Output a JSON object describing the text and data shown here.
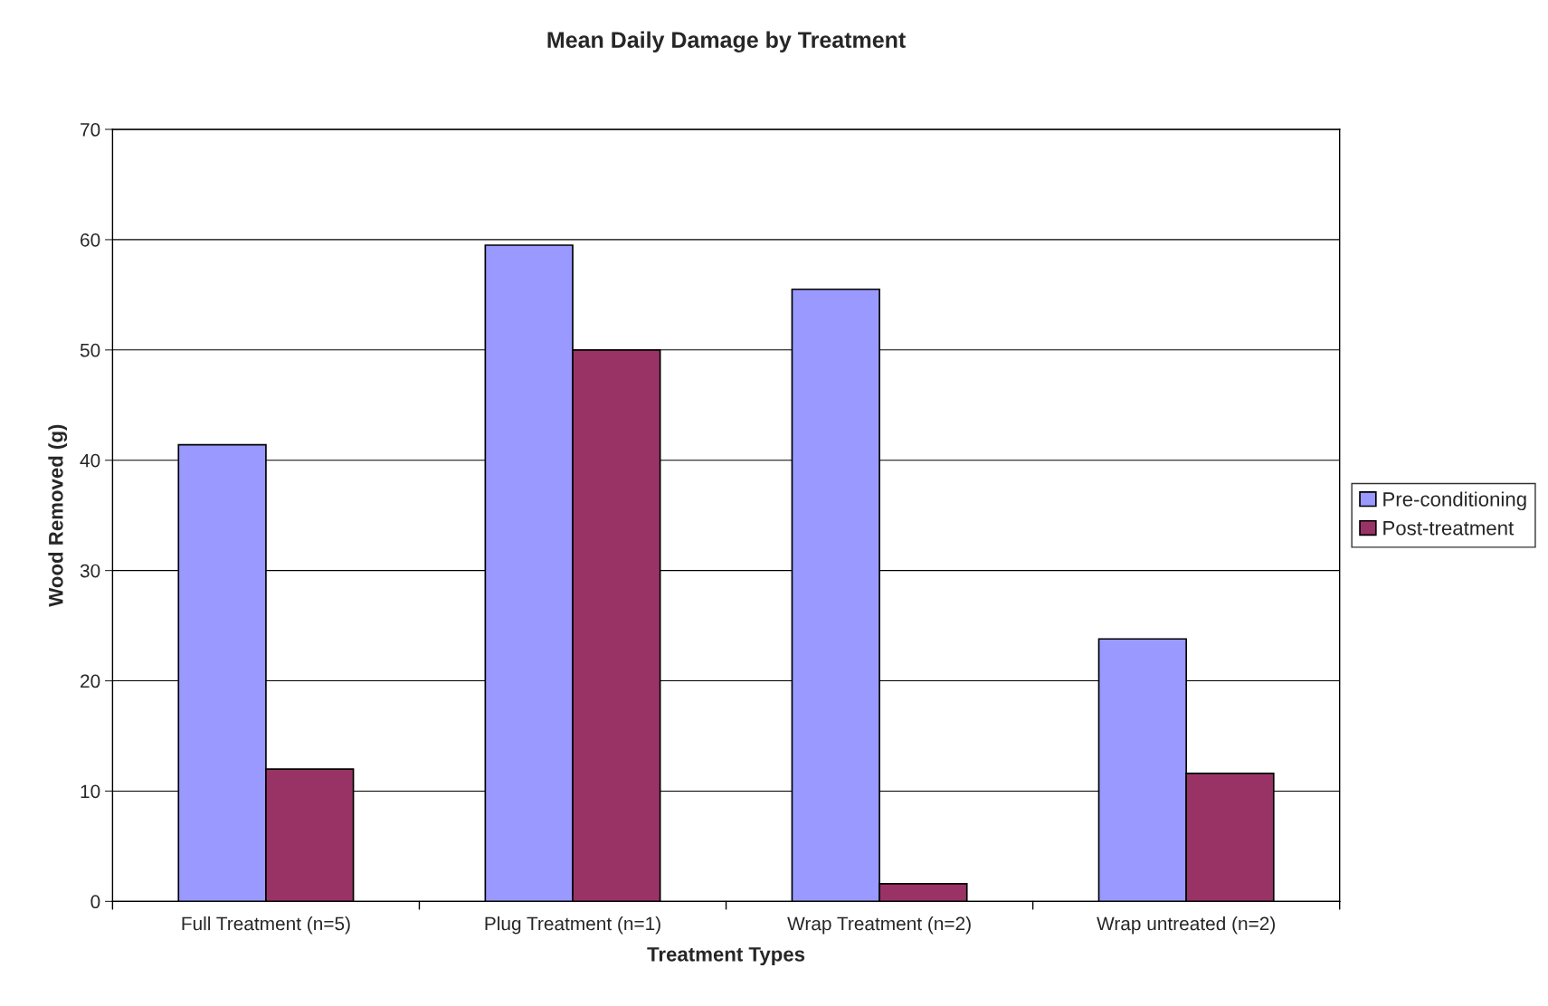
{
  "chart_data": {
    "type": "bar",
    "title": "Mean Daily Damage by Treatment",
    "xlabel": "Treatment Types",
    "ylabel": "Wood Removed (g)",
    "categories": [
      "Full Treatment (n=5)",
      "Plug Treatment (n=1)",
      "Wrap Treatment (n=2)",
      "Wrap untreated (n=2)"
    ],
    "series": [
      {
        "name": "Pre-conditioning",
        "color": "#9999ff",
        "values": [
          41.4,
          59.5,
          55.5,
          23.8
        ]
      },
      {
        "name": "Post-treatment",
        "color": "#993366",
        "values": [
          12.0,
          50.0,
          1.6,
          11.6
        ]
      }
    ],
    "ylim": [
      0,
      70
    ],
    "yticks": [
      0,
      10,
      20,
      30,
      40,
      50,
      60,
      70
    ],
    "grid": "y",
    "legend": "right"
  }
}
